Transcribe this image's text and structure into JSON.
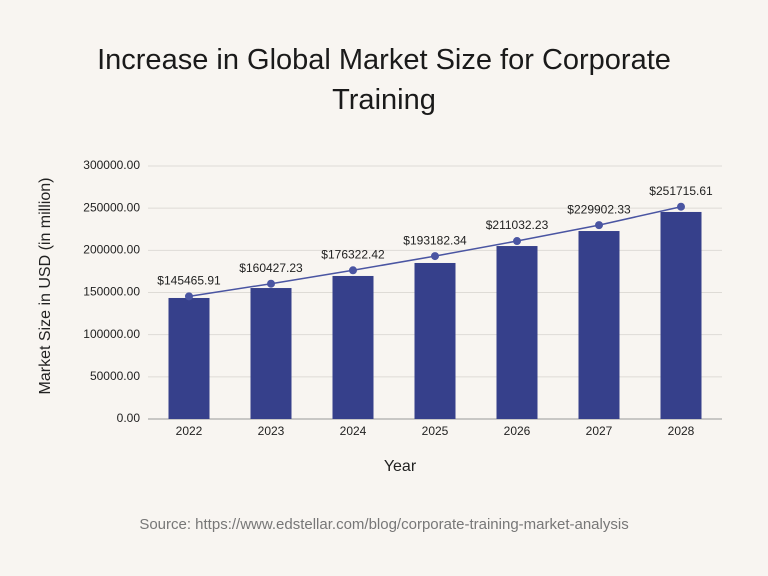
{
  "chart_data": {
    "type": "bar",
    "title": "Increase in Global Market Size for Corporate Training",
    "x_label": "Year",
    "y_label": "Market Size in USD (in million)",
    "source": "Source: https://www.edstellar.com/blog/corporate-training-market-analysis",
    "categories": [
      "2022",
      "2023",
      "2024",
      "2025",
      "2026",
      "2027",
      "2028"
    ],
    "series": [
      {
        "type": "bar",
        "color": "#36408b",
        "values": [
          143500,
          155300,
          169600,
          185000,
          205100,
          222900,
          245500
        ]
      },
      {
        "type": "line",
        "color": "#4a55a2",
        "values": [
          145465.91,
          160427.23,
          176322.42,
          193182.34,
          211032.23,
          229902.33,
          251715.61
        ],
        "value_labels": [
          "$145465.91",
          "$160427.23",
          "$176322.42",
          "$193182.34",
          "$211032.23",
          "$229902.33",
          "$251715.61"
        ]
      }
    ],
    "ylim": [
      0,
      300000
    ],
    "yticks": [
      {
        "value": 0,
        "label": "0.00"
      },
      {
        "value": 50000,
        "label": "50000.00"
      },
      {
        "value": 100000,
        "label": "100000.00"
      },
      {
        "value": 150000,
        "label": "150000.00"
      },
      {
        "value": 200000,
        "label": "200000.00"
      },
      {
        "value": 250000,
        "label": "250000.00"
      },
      {
        "value": 300000,
        "label": "300000.00"
      }
    ],
    "grid": true
  }
}
